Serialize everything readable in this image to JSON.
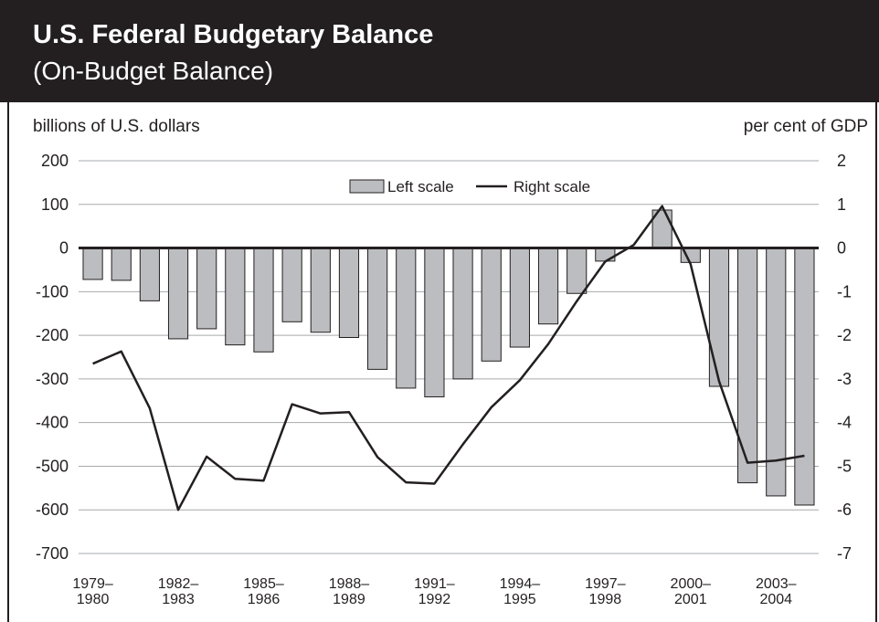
{
  "header": {
    "title": "U.S. Federal Budgetary Balance",
    "subtitle": "(On-Budget Balance)"
  },
  "axes": {
    "left_label": "billions of U.S. dollars",
    "right_label": "per cent of GDP"
  },
  "legend": {
    "bar_label": "Left scale",
    "line_label": "Right scale",
    "placement": "top-center"
  },
  "colors": {
    "header_bg": "#231f20",
    "bar_fill": "#bcbdc0",
    "bar_stroke": "#231f20",
    "line": "#231f20",
    "grid": "#a7a9ac"
  },
  "chart_data": {
    "type": "bar",
    "grid": true,
    "ylim": [
      -700,
      200
    ],
    "y2lim": [
      -7,
      2
    ],
    "yticks": [
      200,
      100,
      0,
      -100,
      -200,
      -300,
      -400,
      -500,
      -600,
      -700
    ],
    "y2ticks": [
      2,
      1,
      0,
      -1,
      -2,
      -3,
      -4,
      -5,
      -6,
      -7
    ],
    "x_tick_labels": [
      [
        "1979–",
        "1980"
      ],
      [
        "1982–",
        "1983"
      ],
      [
        "1985–",
        "1986"
      ],
      [
        "1988–",
        "1989"
      ],
      [
        "1991–",
        "1992"
      ],
      [
        "1994–",
        "1995"
      ],
      [
        "1997–",
        "1998"
      ],
      [
        "2000–",
        "2001"
      ],
      [
        "2003–",
        "2004"
      ]
    ],
    "x_tick_every": 3,
    "series": [
      {
        "name": "Left scale",
        "type": "bar",
        "axis": "left",
        "values": [
          -72,
          -74,
          -121,
          -208,
          -185,
          -222,
          -238,
          -169,
          -193,
          -205,
          -278,
          -321,
          -341,
          -300,
          -259,
          -227,
          -174,
          -104,
          -30,
          1,
          87,
          -33,
          -317,
          -538,
          -568,
          -589
        ]
      },
      {
        "name": "Right scale",
        "type": "line",
        "axis": "right",
        "values": [
          -2.65,
          -2.37,
          -3.67,
          -6.0,
          -4.78,
          -5.29,
          -5.33,
          -3.58,
          -3.79,
          -3.76,
          -4.79,
          -5.37,
          -5.4,
          -4.5,
          -3.65,
          -3.03,
          -2.2,
          -1.22,
          -0.31,
          0.07,
          0.96,
          -0.37,
          -3.05,
          -4.92,
          -4.87,
          -4.76
        ]
      }
    ]
  }
}
